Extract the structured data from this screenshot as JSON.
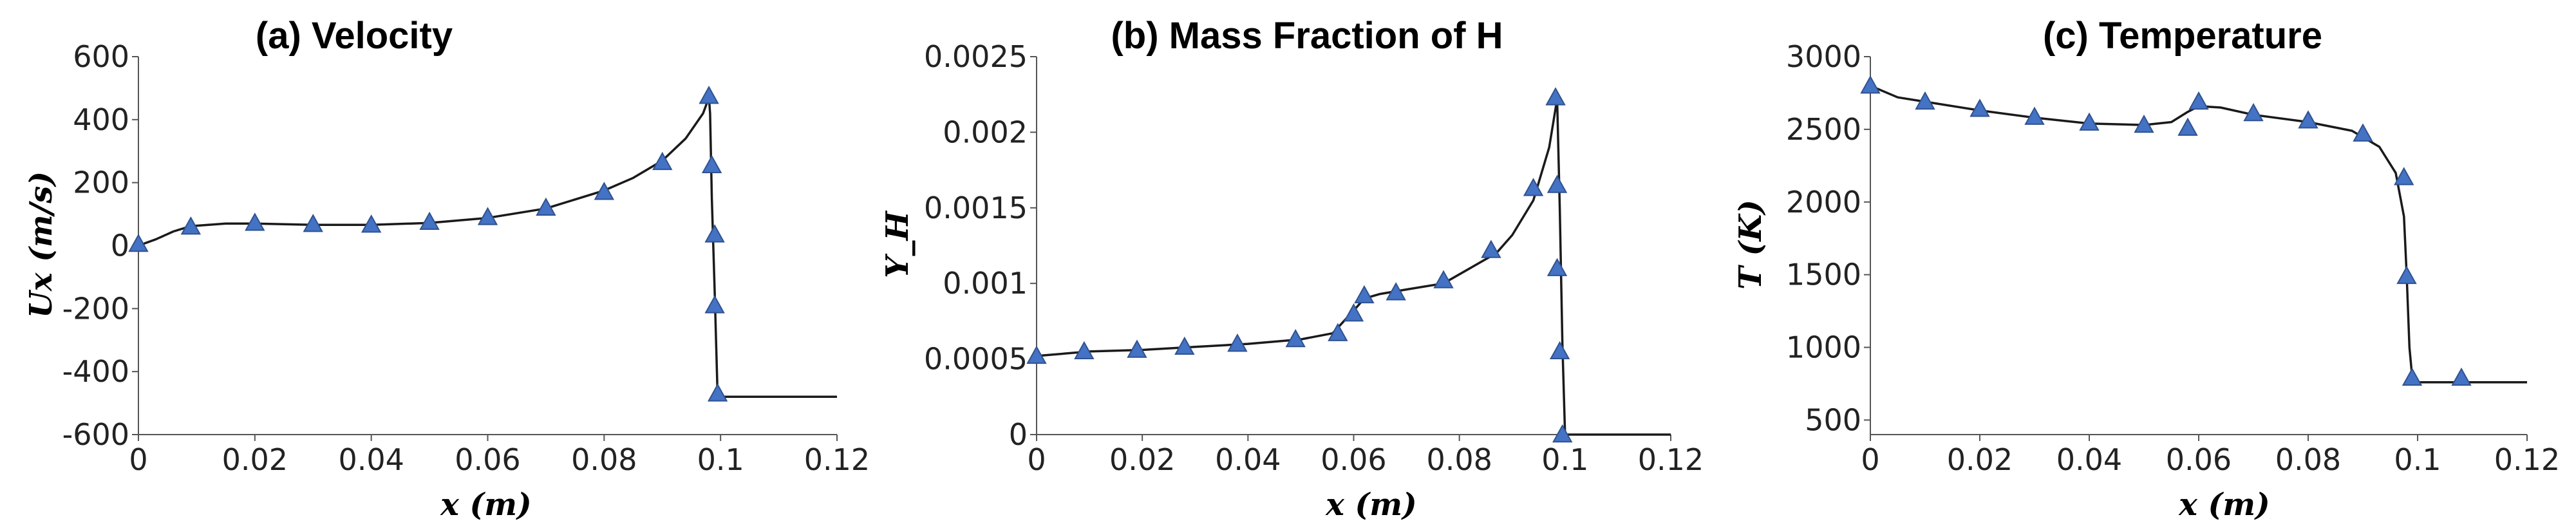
{
  "chart_data": [
    {
      "type": "line",
      "title": "(a) Velocity",
      "xlabel": "x (m)",
      "ylabel": "Ux (m/s)",
      "xlim": [
        0,
        0.12
      ],
      "ylim": [
        -600,
        600
      ],
      "xticks": [
        0,
        0.02,
        0.04,
        0.06,
        0.08,
        0.1,
        0.12
      ],
      "xtick_labels": [
        "0",
        "0.02",
        "0.04",
        "0.06",
        "0.08",
        "0.1",
        "0.12"
      ],
      "yticks": [
        -600,
        -400,
        -200,
        0,
        200,
        400,
        600
      ],
      "ytick_labels": [
        "-600",
        "-400",
        "-200",
        "0",
        "200",
        "400",
        "600"
      ],
      "line": {
        "x": [
          0,
          0.003,
          0.006,
          0.009,
          0.015,
          0.02,
          0.03,
          0.04,
          0.05,
          0.06,
          0.07,
          0.08,
          0.085,
          0.09,
          0.094,
          0.097,
          0.098,
          0.0982,
          0.0985,
          0.099,
          0.0995,
          0.12
        ],
        "y": [
          0,
          20,
          45,
          62,
          70,
          70,
          66,
          66,
          72,
          88,
          118,
          175,
          215,
          270,
          340,
          420,
          470,
          420,
          150,
          -150,
          -480,
          -480
        ]
      },
      "markers": {
        "x": [
          0,
          0.009,
          0.02,
          0.03,
          0.04,
          0.05,
          0.06,
          0.07,
          0.08,
          0.09,
          0.098,
          0.0985,
          0.099,
          0.099,
          0.0995
        ],
        "y": [
          5,
          60,
          72,
          68,
          66,
          75,
          90,
          120,
          170,
          265,
          475,
          255,
          35,
          -190,
          -470
        ]
      }
    },
    {
      "type": "line",
      "title": "(b) Mass Fraction of H",
      "xlabel": "x (m)",
      "ylabel": "Y_H",
      "xlim": [
        0,
        0.12
      ],
      "ylim": [
        0,
        0.0025
      ],
      "xticks": [
        0,
        0.02,
        0.04,
        0.06,
        0.08,
        0.1,
        0.12
      ],
      "xtick_labels": [
        "0",
        "0.02",
        "0.04",
        "0.06",
        "0.08",
        "0.1",
        "0.12"
      ],
      "yticks": [
        0,
        0.0005,
        0.001,
        0.0015,
        0.002,
        0.0025
      ],
      "ytick_labels": [
        "0",
        "0.0005",
        "0.001",
        "0.0015",
        "0.002",
        "0.0025"
      ],
      "line": {
        "x": [
          0,
          0.01,
          0.02,
          0.03,
          0.04,
          0.05,
          0.056,
          0.06,
          0.062,
          0.065,
          0.07,
          0.077,
          0.082,
          0.087,
          0.09,
          0.094,
          0.097,
          0.0985,
          0.099,
          0.0995,
          0.1,
          0.12
        ],
        "y": [
          0.00052,
          0.00055,
          0.00056,
          0.00058,
          0.0006,
          0.00063,
          0.00067,
          0.00082,
          0.0009,
          0.00093,
          0.00096,
          0.001,
          0.0011,
          0.0012,
          0.00132,
          0.00155,
          0.0019,
          0.00222,
          0.0015,
          0.0006,
          0,
          0
        ]
      },
      "markers": {
        "x": [
          0,
          0.009,
          0.019,
          0.028,
          0.038,
          0.049,
          0.057,
          0.06,
          0.062,
          0.068,
          0.077,
          0.086,
          0.094,
          0.0982,
          0.0985,
          0.0985,
          0.099,
          0.0995
        ],
        "y": [
          0.00052,
          0.00055,
          0.00056,
          0.00058,
          0.0006,
          0.00063,
          0.00067,
          0.0008,
          0.00092,
          0.00094,
          0.00102,
          0.00122,
          0.00163,
          0.00223,
          0.00165,
          0.0011,
          0.00055,
          0
        ]
      }
    },
    {
      "type": "line",
      "title": "(c) Temperature",
      "xlabel": "x (m)",
      "ylabel": "T (K)",
      "xlim": [
        0,
        0.12
      ],
      "ylim": [
        400,
        3000
      ],
      "xticks": [
        0,
        0.02,
        0.04,
        0.06,
        0.08,
        0.1,
        0.12
      ],
      "xtick_labels": [
        "0",
        "0.02",
        "0.04",
        "0.06",
        "0.08",
        "0.1",
        "0.12"
      ],
      "yticks": [
        500,
        1000,
        1500,
        2000,
        2500,
        3000
      ],
      "ytick_labels": [
        "500",
        "1000",
        "1500",
        "2000",
        "2500",
        "3000"
      ],
      "line": {
        "x": [
          0,
          0.005,
          0.01,
          0.02,
          0.03,
          0.04,
          0.05,
          0.055,
          0.058,
          0.06,
          0.064,
          0.07,
          0.08,
          0.088,
          0.093,
          0.096,
          0.0975,
          0.098,
          0.0985,
          0.099,
          0.1,
          0.11,
          0.12
        ],
        "y": [
          2800,
          2720,
          2690,
          2630,
          2580,
          2540,
          2530,
          2550,
          2620,
          2660,
          2650,
          2600,
          2550,
          2490,
          2380,
          2200,
          1900,
          1500,
          1000,
          800,
          760,
          760,
          760
        ]
      },
      "markers": {
        "x": [
          0,
          0.01,
          0.02,
          0.03,
          0.04,
          0.05,
          0.058,
          0.06,
          0.07,
          0.08,
          0.09,
          0.0975,
          0.098,
          0.099,
          0.108
        ],
        "y": [
          2800,
          2690,
          2640,
          2585,
          2545,
          2530,
          2510,
          2690,
          2610,
          2560,
          2470,
          2170,
          1490,
          790,
          790
        ]
      }
    }
  ]
}
